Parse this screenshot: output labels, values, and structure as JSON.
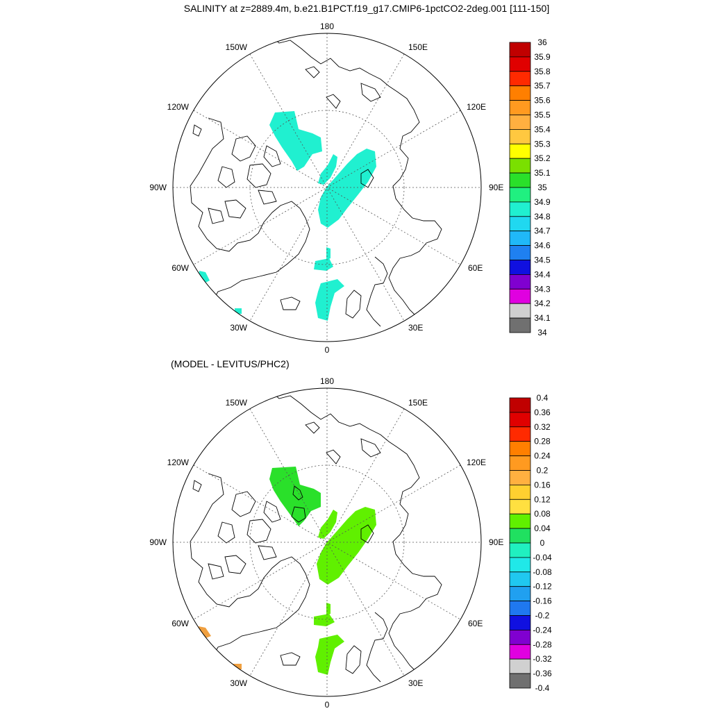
{
  "title": "SALINITY at z=2889.4m, b.e21.B1PCT.f19_g17.CMIP6-1pctCO2-2deg.001 [111-150]",
  "subtitle": "(MODEL - LEVITUS/PHC2)",
  "longitude_labels": {
    "top": "180",
    "bottom": "0",
    "left": "90W",
    "right": "90E",
    "upper_left_1": "150W",
    "upper_left_2": "120W",
    "upper_right_1": "150E",
    "upper_right_2": "120E",
    "lower_left_1": "60W",
    "lower_left_2": "30W",
    "lower_right_1": "60E",
    "lower_right_2": "30E"
  },
  "colorbar_top": {
    "labels": [
      "36",
      "35.9",
      "35.8",
      "35.7",
      "35.6",
      "35.5",
      "35.4",
      "35.3",
      "35.2",
      "35.1",
      "35",
      "34.9",
      "34.8",
      "34.7",
      "34.6",
      "34.5",
      "34.4",
      "34.3",
      "34.2",
      "34.1",
      "34"
    ],
    "colors": [
      "#C00000",
      "#E00000",
      "#FF2A00",
      "#FF7F00",
      "#FF9A20",
      "#FFB040",
      "#FFC840",
      "#FFFF00",
      "#7AE000",
      "#2AE02A",
      "#20F080",
      "#20F0D0",
      "#20D8F0",
      "#20B8F8",
      "#1F80F0",
      "#1010E0",
      "#8000D0",
      "#E000E0",
      "#D0D0D0",
      "#707070"
    ]
  },
  "colorbar_bottom": {
    "labels": [
      "0.4",
      "0.36",
      "0.32",
      "0.28",
      "0.24",
      "0.2",
      "0.16",
      "0.12",
      "0.08",
      "0.04",
      "0",
      "-0.04",
      "-0.08",
      "-0.12",
      "-0.16",
      "-0.2",
      "-0.24",
      "-0.28",
      "-0.32",
      "-0.36",
      "-0.4"
    ],
    "colors": [
      "#C00000",
      "#E00000",
      "#FF2A00",
      "#FF7F00",
      "#FF9A20",
      "#FFB040",
      "#FFD030",
      "#FFE040",
      "#60F000",
      "#20E060",
      "#20F0C0",
      "#20E8E8",
      "#20C8F0",
      "#20A0F0",
      "#1F78F0",
      "#1010E0",
      "#8000D0",
      "#E000E0",
      "#D0D0D0",
      "#707070"
    ]
  },
  "fill_colors": {
    "top_salinity": "#20F0D0",
    "bottom_bering": "#2AE02A",
    "bottom_main": "#60F000",
    "bottom_atlantic": "#F0A040"
  }
}
